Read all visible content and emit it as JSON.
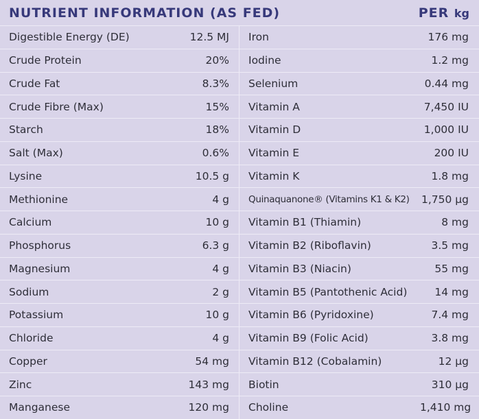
{
  "header": {
    "title": "NUTRIENT INFORMATION (AS FED)",
    "unit_prefix": "PER",
    "unit": "kg"
  },
  "table": {
    "rows": [
      [
        "Digestible Energy (DE)",
        "12.5 MJ",
        "Iron",
        "176 mg"
      ],
      [
        "Crude Protein",
        "20%",
        "Iodine",
        "1.2 mg"
      ],
      [
        "Crude Fat",
        "8.3%",
        "Selenium",
        "0.44 mg"
      ],
      [
        "Crude Fibre (Max)",
        "15%",
        "Vitamin A",
        "7,450 IU"
      ],
      [
        "Starch",
        "18%",
        "Vitamin D",
        "1,000 IU"
      ],
      [
        "Salt (Max)",
        "0.6%",
        "Vitamin E",
        "200 IU"
      ],
      [
        "Lysine",
        "10.5 g",
        "Vitamin K",
        "1.8 mg"
      ],
      [
        "Methionine",
        "4 g",
        "Quinaquanone® (Vitamins K1 & K2)",
        "1,750 µg"
      ],
      [
        "Calcium",
        "10 g",
        "Vitamin B1 (Thiamin)",
        "8 mg"
      ],
      [
        "Phosphorus",
        "6.3 g",
        "Vitamin B2 (Riboflavin)",
        "3.5 mg"
      ],
      [
        "Magnesium",
        "4 g",
        "Vitamin B3 (Niacin)",
        "55 mg"
      ],
      [
        "Sodium",
        "2 g",
        "Vitamin B5 (Pantothenic Acid)",
        "14 mg"
      ],
      [
        "Potassium",
        "10 g",
        "Vitamin B6 (Pyridoxine)",
        "7.4 mg"
      ],
      [
        "Chloride",
        "4 g",
        "Vitamin B9 (Folic Acid)",
        "3.8 mg"
      ],
      [
        "Copper",
        "54 mg",
        "Vitamin B12 (Cobalamin)",
        "12 µg"
      ],
      [
        "Zinc",
        "143 mg",
        "Biotin",
        "310 µg"
      ],
      [
        "Manganese",
        "120 mg",
        "Choline",
        "1,410 mg"
      ]
    ]
  }
}
